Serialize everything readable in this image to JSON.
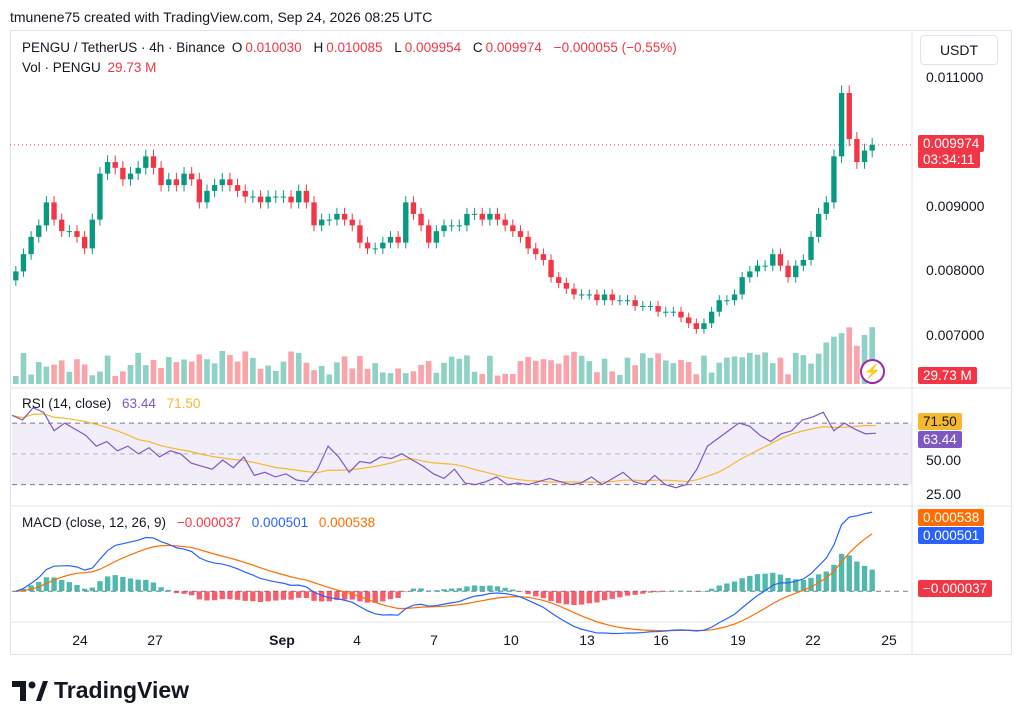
{
  "header": {
    "text": "tmunene75 created with TradingView.com, Sep 24, 2026 08:25 UTC"
  },
  "legend": {
    "symbol": "PENGU / TetherUS · 4h · Binance",
    "o_label": "O",
    "o_value": "0.010030",
    "h_label": "H",
    "h_value": "0.010085",
    "l_label": "L",
    "l_value": "0.009954",
    "c_label": "C",
    "c_value": "0.009974",
    "change": "−0.000055 (−0.55%)",
    "vol_label": "Vol · PENGU",
    "vol_value": "29.73 M"
  },
  "currency_button": "USDT",
  "price_axis": {
    "ticks": [
      "0.011000",
      "0.009000",
      "0.008000",
      "0.007000"
    ],
    "last_price_tag": "0.009974",
    "countdown_tag": "03:34:11",
    "volume_tag": "29.73 M"
  },
  "rsi": {
    "label": "RSI (14, close)",
    "value": "63.44",
    "ma_value": "71.50",
    "axis_ticks": [
      "50.00",
      "25.00"
    ],
    "tag_ma": "71.50",
    "tag_value": "63.44"
  },
  "macd": {
    "label": "MACD (close, 12, 26, 9)",
    "hist_value": "−0.000037",
    "macd_value": "0.000501",
    "signal_value": "0.000538",
    "tag_signal": "0.000538",
    "tag_macd": "0.000501",
    "tag_hist": "−0.000037"
  },
  "x_axis": {
    "labels": [
      "24",
      "27",
      "Sep",
      "4",
      "7",
      "10",
      "13",
      "16",
      "19",
      "22",
      "25"
    ]
  },
  "brand": "TradingView",
  "colors": {
    "up": "#089981",
    "down": "#f23645",
    "rsi_line": "#7e57c2",
    "rsi_ma": "#f5b82e",
    "macd_line": "#2962ff",
    "signal_line": "#ff6d00"
  },
  "chart_data": {
    "type": "candlestick",
    "price_ylim": [
      0.0064,
      0.0113
    ],
    "close_series": [
      0.0078,
      0.0081,
      0.0084,
      0.0086,
      0.009,
      0.0087,
      0.0085,
      0.0085,
      0.0084,
      0.0082,
      0.0087,
      0.0095,
      0.0097,
      0.0096,
      0.0094,
      0.0095,
      0.0096,
      0.0098,
      0.0096,
      0.0093,
      0.0094,
      0.0093,
      0.0095,
      0.0094,
      0.009,
      0.0092,
      0.0093,
      0.0094,
      0.0093,
      0.0092,
      0.0091,
      0.0091,
      0.009,
      0.0091,
      0.0091,
      0.0091,
      0.009,
      0.0092,
      0.009,
      0.0086,
      0.0087,
      0.0087,
      0.0088,
      0.0087,
      0.0086,
      0.0083,
      0.0082,
      0.0082,
      0.0083,
      0.0084,
      0.0083,
      0.009,
      0.0088,
      0.0086,
      0.0083,
      0.0085,
      0.0086,
      0.0086,
      0.0086,
      0.0088,
      0.0088,
      0.0087,
      0.0088,
      0.0087,
      0.0086,
      0.0085,
      0.0084,
      0.0082,
      0.0081,
      0.008,
      0.0077,
      0.0076,
      0.0075,
      0.0074,
      0.0074,
      0.0074,
      0.0073,
      0.0074,
      0.0073,
      0.0073,
      0.0073,
      0.0072,
      0.0072,
      0.0072,
      0.0071,
      0.0071,
      0.0071,
      0.007,
      0.0069,
      0.0068,
      0.0069,
      0.0071,
      0.0073,
      0.0073,
      0.0074,
      0.0077,
      0.0078,
      0.0079,
      0.0079,
      0.0081,
      0.0079,
      0.0077,
      0.0079,
      0.008,
      0.0084,
      0.0088,
      0.009,
      0.0098,
      0.0109,
      0.0101,
      0.0097,
      0.0099,
      0.01
    ],
    "volume_ylim": [
      0,
      100
    ],
    "rsi_series": [
      75,
      72,
      80,
      77,
      65,
      70,
      66,
      62,
      55,
      58,
      52,
      55,
      50,
      54,
      48,
      52,
      50,
      44,
      42,
      40,
      46,
      41,
      48,
      36,
      38,
      35,
      37,
      33,
      32,
      40,
      55,
      48,
      38,
      45,
      44,
      48,
      47,
      50,
      46,
      42,
      37,
      34,
      40,
      31,
      30,
      32,
      35,
      30,
      31,
      30,
      32,
      34,
      32,
      30,
      31,
      35,
      30,
      34,
      38,
      32,
      30,
      36,
      30,
      28,
      30,
      40,
      55,
      60,
      65,
      70,
      68,
      62,
      58,
      63,
      65,
      72,
      74,
      77,
      65,
      70,
      66,
      63,
      63.44
    ],
    "rsi_ylim": [
      20,
      85
    ],
    "macd_ylim": [
      -0.0002,
      0.0006
    ]
  }
}
